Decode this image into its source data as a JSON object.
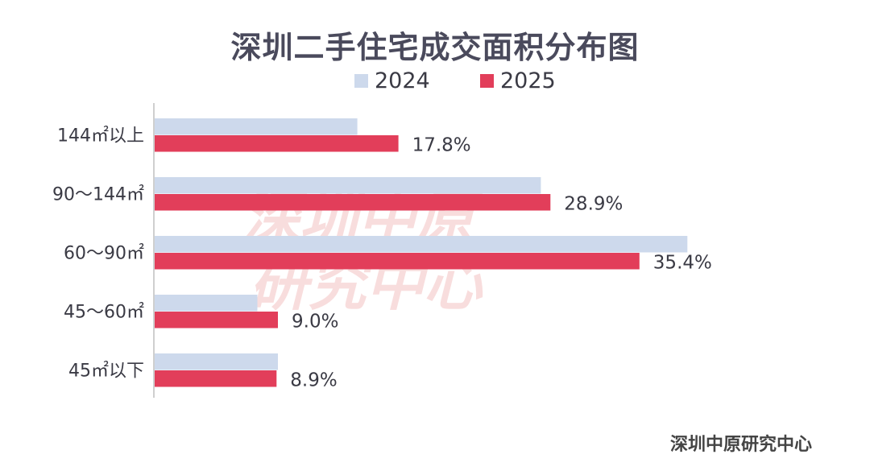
{
  "title": "深圳二手住宅成交面积分布图",
  "watermark": {
    "line1": "深圳中原",
    "line2": "研究中心"
  },
  "source": "深圳中原研究中心",
  "colors": {
    "series_2024": "#cdd9ec",
    "series_2025": "#e23e5a"
  },
  "chart_data": {
    "type": "bar",
    "orientation": "horizontal",
    "categories": [
      "144㎡以上",
      "90～144㎡",
      "60～90㎡",
      "45～60㎡",
      "45㎡以下"
    ],
    "series": [
      {
        "name": "2024",
        "values": [
          14.8,
          28.2,
          38.9,
          7.5,
          9.0
        ]
      },
      {
        "name": "2025",
        "values": [
          17.8,
          28.9,
          35.4,
          9.0,
          8.9
        ],
        "labels": [
          "17.8%",
          "28.9%",
          "35.4%",
          "9.0%",
          "8.9%"
        ]
      }
    ],
    "title": "深圳二手住宅成交面积分布图",
    "xlim": [
      0,
      40
    ],
    "grid": false,
    "legend": "top-center"
  }
}
